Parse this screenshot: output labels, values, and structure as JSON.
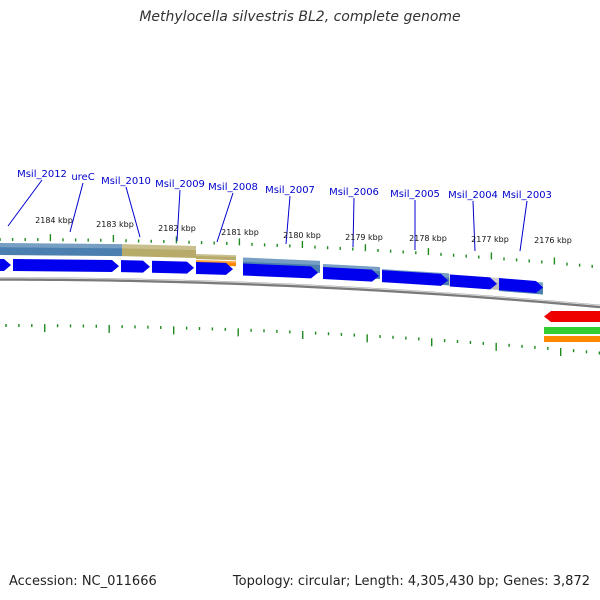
{
  "title": "Methylocella silvestris BL2, complete genome",
  "footer": {
    "accession": "Accession: NC_011666",
    "summary": "Topology: circular; Length: 4,305,430 bp; Genes: 3,872"
  },
  "colors": {
    "tick": "#1f8a1f",
    "gene_label": "#0000cc",
    "leader_line": "#0000cc",
    "cds_arrow": "#0000ee",
    "track_blue": "#4a7fb0",
    "track_olive": "#b8ab6a",
    "track_gray": "#bdbdbd",
    "track_orange": "#ff8800",
    "backbone": "#7a7a7a",
    "reverse_red": "#ee0000",
    "reverse_green": "#33cc33"
  },
  "genes": [
    {
      "name": "Msil_2012"
    },
    {
      "name": "ureC"
    },
    {
      "name": "Msil_2010"
    },
    {
      "name": "Msil_2009"
    },
    {
      "name": "Msil_2008"
    },
    {
      "name": "Msil_2007"
    },
    {
      "name": "Msil_2006"
    },
    {
      "name": "Msil_2005"
    },
    {
      "name": "Msil_2004"
    },
    {
      "name": "Msil_2003"
    }
  ],
  "ticks": [
    {
      "label": "2184 kbp"
    },
    {
      "label": "2183 kbp"
    },
    {
      "label": "2182 kbp"
    },
    {
      "label": "2181 kbp"
    },
    {
      "label": "2180 kbp"
    },
    {
      "label": "2179 kbp"
    },
    {
      "label": "2178 kbp"
    },
    {
      "label": "2177 kbp"
    },
    {
      "label": "2176 kbp"
    }
  ]
}
